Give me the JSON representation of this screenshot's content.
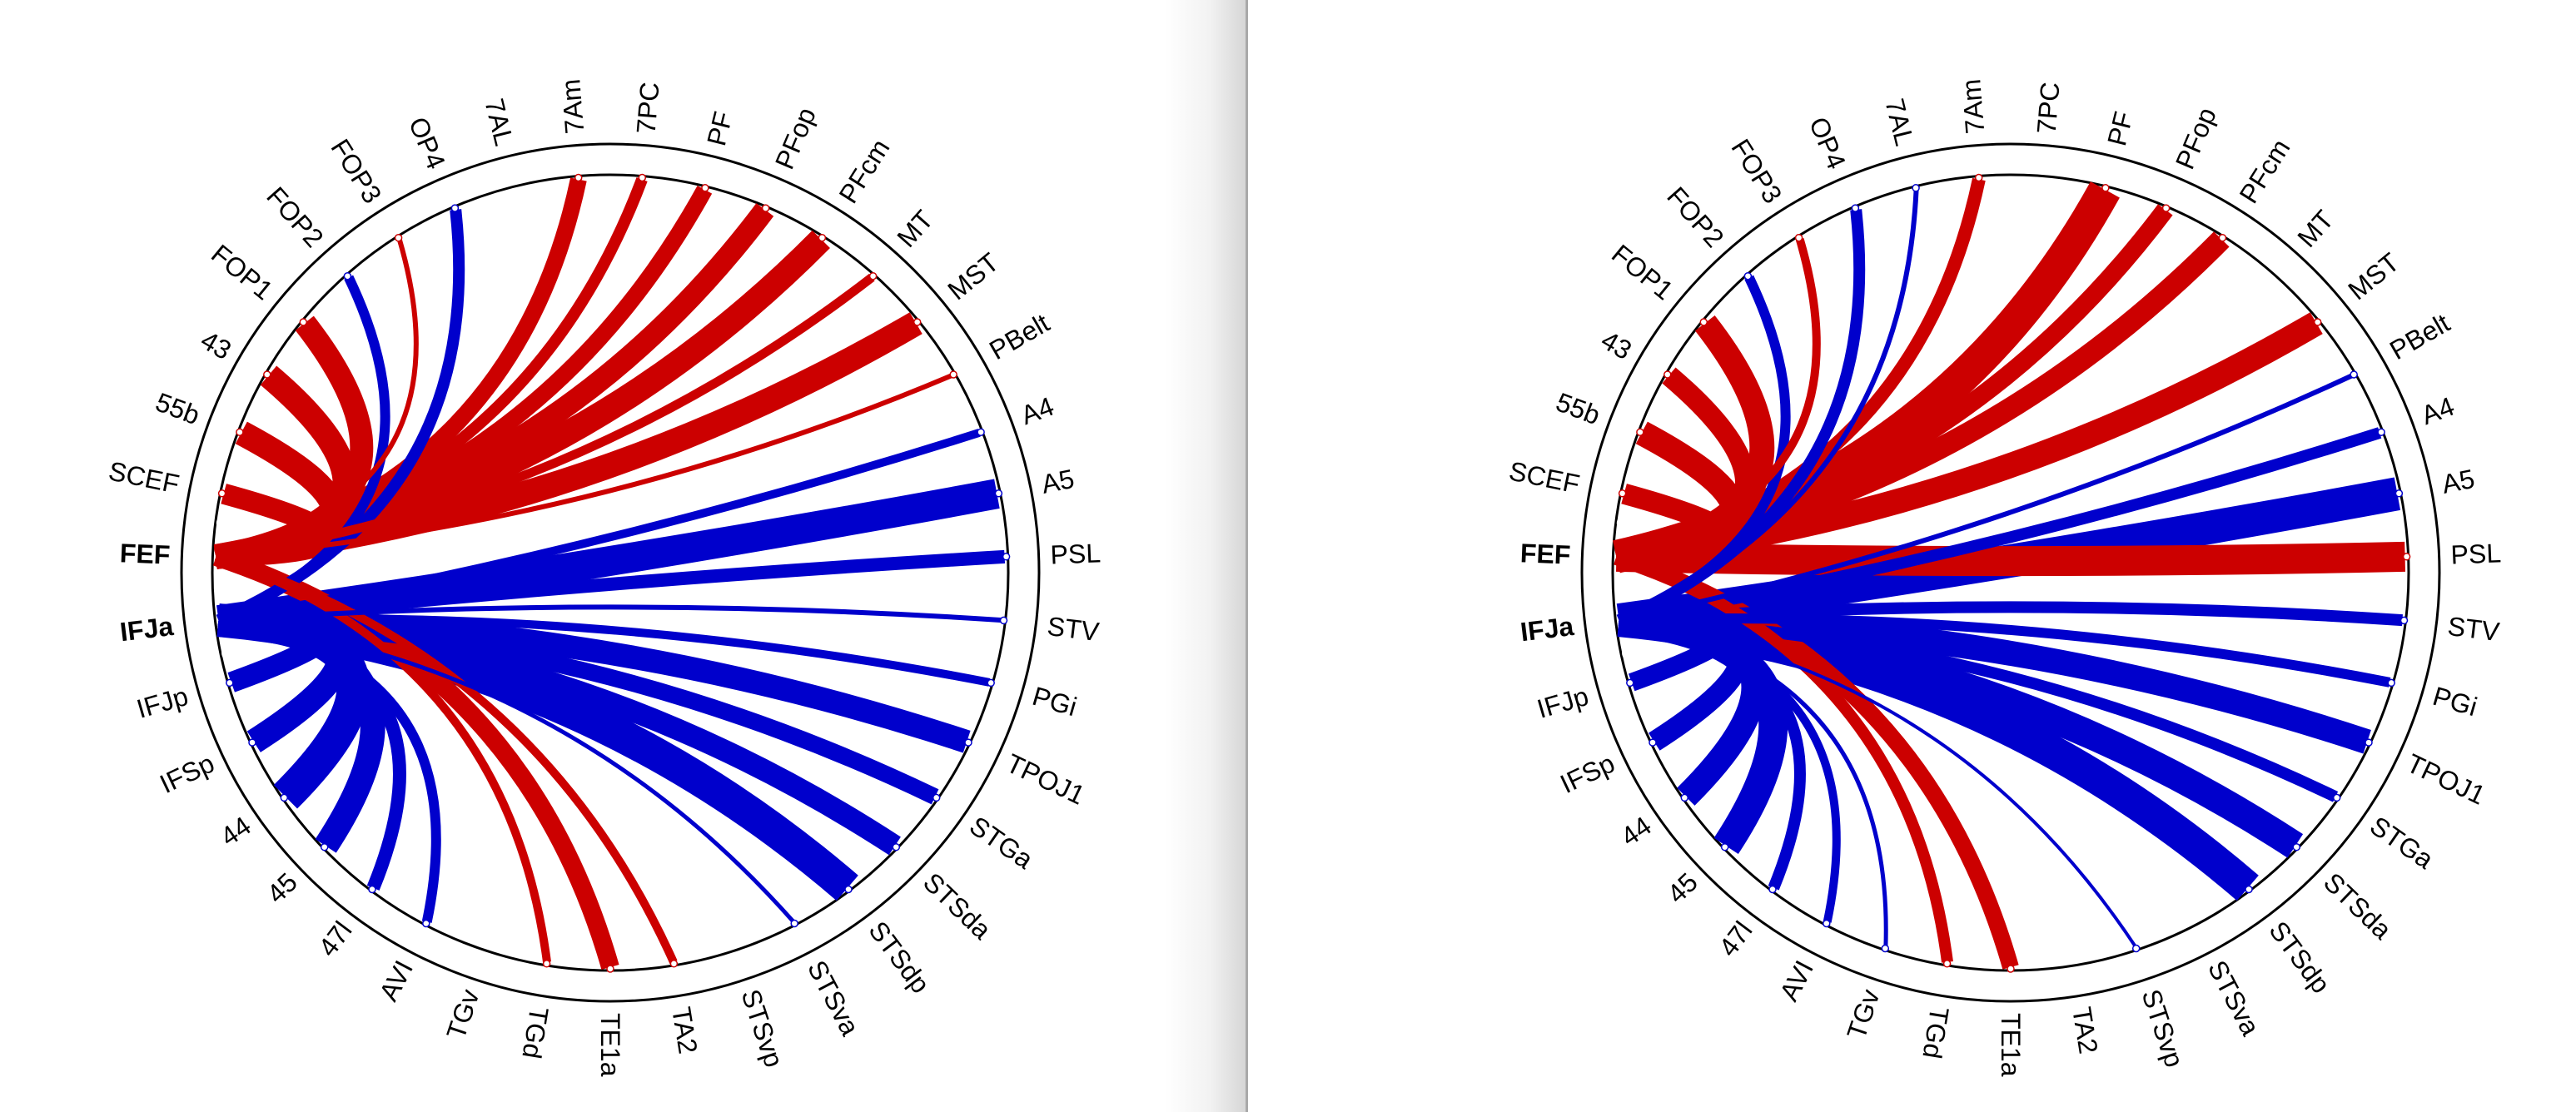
{
  "colors": {
    "FEF": "#cc0000",
    "IFJa": "#0000cc",
    "ring": "#000000"
  },
  "nodes": [
    "7PC",
    "PF",
    "PFop",
    "PFcm",
    "MT",
    "MST",
    "PBelt",
    "A4",
    "A5",
    "PSL",
    "STV",
    "PGi",
    "TPOJ1",
    "STGa",
    "STSda",
    "STSdp",
    "STSva",
    "STSvp",
    "TA2",
    "TE1a",
    "TGd",
    "TGv",
    "AVI",
    "47l",
    "45",
    "44",
    "IFSp",
    "IFJp",
    "IFJa",
    "FEF",
    "SCEF",
    "55b",
    "43",
    "FOP1",
    "FOP2",
    "FOP3",
    "OP4",
    "7AL",
    "7Am"
  ],
  "highlighted": [
    "FEF",
    "IFJa"
  ],
  "panels": [
    {
      "name": "left",
      "connections": [
        {
          "source": "FEF",
          "target": "7Am",
          "weight": 20
        },
        {
          "source": "FEF",
          "target": "7PC",
          "weight": 14
        },
        {
          "source": "FEF",
          "target": "PF",
          "weight": 20
        },
        {
          "source": "FEF",
          "target": "PFop",
          "weight": 26
        },
        {
          "source": "FEF",
          "target": "PFcm",
          "weight": 30
        },
        {
          "source": "FEF",
          "target": "MT",
          "weight": 11
        },
        {
          "source": "FEF",
          "target": "MST",
          "weight": 30
        },
        {
          "source": "FEF",
          "target": "PBelt",
          "weight": 6
        },
        {
          "source": "IFJa",
          "target": "A4",
          "weight": 10
        },
        {
          "source": "IFJa",
          "target": "A5",
          "weight": 36
        },
        {
          "source": "IFJa",
          "target": "PSL",
          "weight": 16
        },
        {
          "source": "IFJa",
          "target": "STV",
          "weight": 6
        },
        {
          "source": "IFJa",
          "target": "PGi",
          "weight": 10
        },
        {
          "source": "IFJa",
          "target": "TPOJ1",
          "weight": 28
        },
        {
          "source": "IFJa",
          "target": "STGa",
          "weight": 20
        },
        {
          "source": "IFJa",
          "target": "STSda",
          "weight": 26
        },
        {
          "source": "IFJa",
          "target": "STSdp",
          "weight": 40
        },
        {
          "source": "IFJa",
          "target": "STSva",
          "weight": 5
        },
        {
          "source": "FEF",
          "target": "TA2",
          "weight": 10
        },
        {
          "source": "FEF",
          "target": "TE1a",
          "weight": 22
        },
        {
          "source": "FEF",
          "target": "TGd",
          "weight": 10
        },
        {
          "source": "IFJa",
          "target": "AVI",
          "weight": 12
        },
        {
          "source": "IFJa",
          "target": "47l",
          "weight": 16
        },
        {
          "source": "IFJa",
          "target": "45",
          "weight": 30
        },
        {
          "source": "IFJa",
          "target": "44",
          "weight": 40
        },
        {
          "source": "IFJa",
          "target": "IFSp",
          "weight": 30
        },
        {
          "source": "IFJa",
          "target": "IFJp",
          "weight": 25
        },
        {
          "source": "FEF",
          "target": "SCEF",
          "weight": 25
        },
        {
          "source": "FEF",
          "target": "55b",
          "weight": 30
        },
        {
          "source": "FEF",
          "target": "43",
          "weight": 30
        },
        {
          "source": "FEF",
          "target": "FOP1",
          "weight": 28
        },
        {
          "source": "IFJa",
          "target": "FOP2",
          "weight": 12
        },
        {
          "source": "FEF",
          "target": "FOP3",
          "weight": 6
        },
        {
          "source": "IFJa",
          "target": "OP4",
          "weight": 14
        }
      ]
    },
    {
      "name": "right",
      "connections": [
        {
          "source": "FEF",
          "target": "7Am",
          "weight": 16
        },
        {
          "source": "FEF",
          "target": "PF",
          "weight": 40
        },
        {
          "source": "FEF",
          "target": "PFop",
          "weight": 22
        },
        {
          "source": "FEF",
          "target": "PFcm",
          "weight": 26
        },
        {
          "source": "FEF",
          "target": "MST",
          "weight": 30
        },
        {
          "source": "IFJa",
          "target": "PBelt",
          "weight": 6
        },
        {
          "source": "IFJa",
          "target": "A4",
          "weight": 14
        },
        {
          "source": "IFJa",
          "target": "A5",
          "weight": 40
        },
        {
          "source": "FEF",
          "target": "PSL",
          "weight": 36
        },
        {
          "source": "IFJa",
          "target": "STV",
          "weight": 14
        },
        {
          "source": "IFJa",
          "target": "PGi",
          "weight": 12
        },
        {
          "source": "IFJa",
          "target": "TPOJ1",
          "weight": 30
        },
        {
          "source": "IFJa",
          "target": "STGa",
          "weight": 14
        },
        {
          "source": "IFJa",
          "target": "STSda",
          "weight": 34
        },
        {
          "source": "IFJa",
          "target": "STSdp",
          "weight": 40
        },
        {
          "source": "IFJa",
          "target": "STSvp",
          "weight": 4
        },
        {
          "source": "FEF",
          "target": "TE1a",
          "weight": 20
        },
        {
          "source": "FEF",
          "target": "TGd",
          "weight": 14
        },
        {
          "source": "IFJa",
          "target": "TGv",
          "weight": 5
        },
        {
          "source": "IFJa",
          "target": "AVI",
          "weight": 10
        },
        {
          "source": "IFJa",
          "target": "47l",
          "weight": 14
        },
        {
          "source": "IFJa",
          "target": "45",
          "weight": 35
        },
        {
          "source": "IFJa",
          "target": "44",
          "weight": 30
        },
        {
          "source": "IFJa",
          "target": "IFSp",
          "weight": 25
        },
        {
          "source": "IFJa",
          "target": "IFJp",
          "weight": 22
        },
        {
          "source": "FEF",
          "target": "SCEF",
          "weight": 25
        },
        {
          "source": "FEF",
          "target": "55b",
          "weight": 30
        },
        {
          "source": "FEF",
          "target": "43",
          "weight": 25
        },
        {
          "source": "FEF",
          "target": "FOP1",
          "weight": 30
        },
        {
          "source": "IFJa",
          "target": "FOP2",
          "weight": 12
        },
        {
          "source": "FEF",
          "target": "FOP3",
          "weight": 10
        },
        {
          "source": "IFJa",
          "target": "OP4",
          "weight": 14
        },
        {
          "source": "IFJa",
          "target": "7AL",
          "weight": 6
        }
      ]
    }
  ]
}
